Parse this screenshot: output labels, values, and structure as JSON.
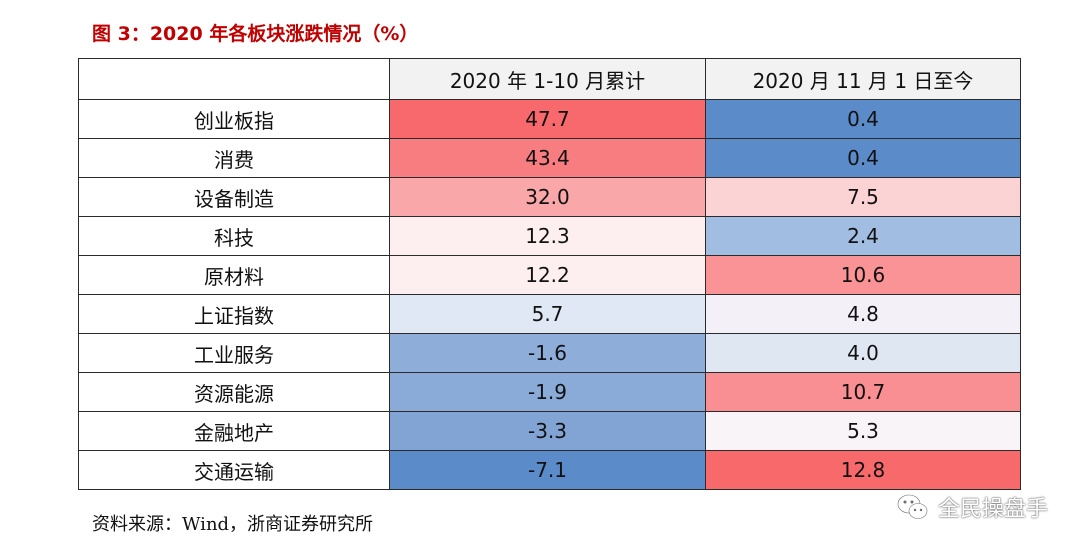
{
  "title": "图 3：2020 年各板块涨跌情况（%）",
  "table": {
    "headers": [
      "",
      "2020 年 1-10 月累计",
      "2020 月 11 月 1 日至今"
    ],
    "rows": [
      {
        "name": "创业板指",
        "ytd": "47.7",
        "ytd_color": "#f7696d",
        "nov": "0.4",
        "nov_color": "#5b8bc9"
      },
      {
        "name": "消费",
        "ytd": "43.4",
        "ytd_color": "#f87d80",
        "nov": "0.4",
        "nov_color": "#5b8bc9"
      },
      {
        "name": "设备制造",
        "ytd": "32.0",
        "ytd_color": "#f9a7a9",
        "nov": "7.5",
        "nov_color": "#fcd3d5"
      },
      {
        "name": "科技",
        "ytd": "12.3",
        "ytd_color": "#fdeff0",
        "nov": "2.4",
        "nov_color": "#a2bde2"
      },
      {
        "name": "原材料",
        "ytd": "12.2",
        "ytd_color": "#fdeff0",
        "nov": "10.6",
        "nov_color": "#f99396"
      },
      {
        "name": "上证指数",
        "ytd": "5.7",
        "ytd_color": "#dfe8f4",
        "nov": "4.8",
        "nov_color": "#f3f1f7"
      },
      {
        "name": "工业服务",
        "ytd": "-1.6",
        "ytd_color": "#8eadd9",
        "nov": "4.0",
        "nov_color": "#dfe7f3"
      },
      {
        "name": "资源能源",
        "ytd": "-1.9",
        "ytd_color": "#8aabd8",
        "nov": "10.7",
        "nov_color": "#f98f92"
      },
      {
        "name": "金融地产",
        "ytd": "-3.3",
        "ytd_color": "#81a4d4",
        "nov": "5.3",
        "nov_color": "#f8f4f8"
      },
      {
        "name": "交通运输",
        "ytd": "-7.1",
        "ytd_color": "#5b8bc9",
        "nov": "12.8",
        "nov_color": "#f8696c"
      }
    ]
  },
  "source": "资料来源：Wind，浙商证券研究所",
  "watermark": {
    "text": "全民操盘手",
    "icon": "wechat-logo-icon"
  },
  "colors": {
    "title": "#c00000",
    "header_bg": "#f2f2f2",
    "border": "#2b2b2b"
  }
}
